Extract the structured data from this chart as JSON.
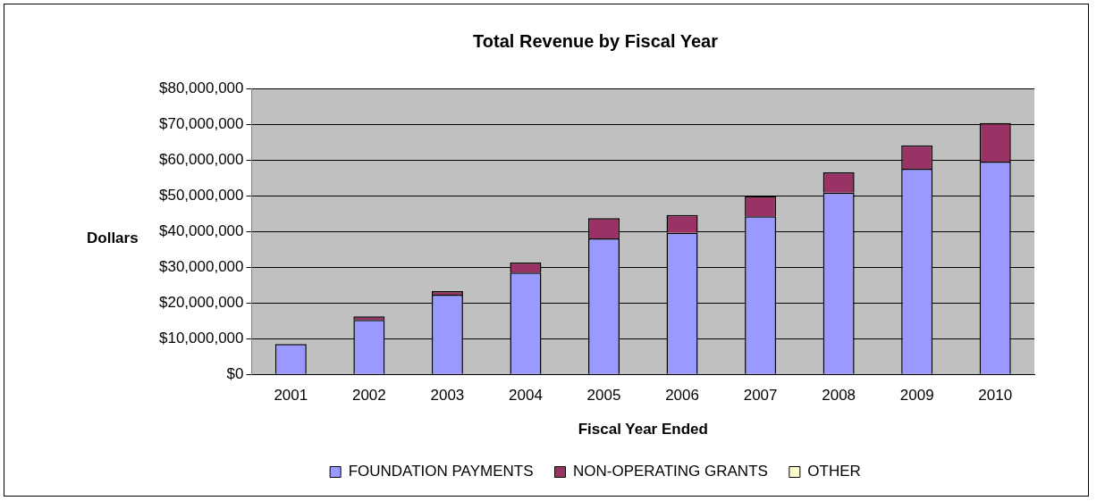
{
  "chart_data": {
    "type": "bar",
    "title": "Total Revenue by Fiscal Year",
    "xlabel": "Fiscal Year Ended",
    "ylabel": "Dollars",
    "categories": [
      "2001",
      "2002",
      "2003",
      "2004",
      "2005",
      "2006",
      "2007",
      "2008",
      "2009",
      "2010"
    ],
    "series": [
      {
        "name": "FOUNDATION PAYMENTS",
        "color": "#9999ff",
        "values": [
          8500000,
          15200000,
          22300000,
          28500000,
          38000000,
          39600000,
          44200000,
          50800000,
          57500000,
          59500000
        ]
      },
      {
        "name": "NON-OPERATING GRANTS",
        "color": "#993366",
        "values": [
          0,
          1000000,
          1000000,
          2800000,
          5700000,
          5000000,
          5700000,
          5700000,
          6600000,
          10800000
        ]
      },
      {
        "name": "OTHER",
        "color": "#ffffcc",
        "values": [
          0,
          0,
          0,
          0,
          0,
          0,
          0,
          0,
          0,
          0
        ]
      }
    ],
    "stacked": true,
    "ylim": [
      0,
      80000000
    ],
    "yticks": [
      {
        "value": 0,
        "label": "$0"
      },
      {
        "value": 10000000,
        "label": "$10,000,000"
      },
      {
        "value": 20000000,
        "label": "$20,000,000"
      },
      {
        "value": 30000000,
        "label": "$30,000,000"
      },
      {
        "value": 40000000,
        "label": "$40,000,000"
      },
      {
        "value": 50000000,
        "label": "$50,000,000"
      },
      {
        "value": 60000000,
        "label": "$60,000,000"
      },
      {
        "value": 70000000,
        "label": "$70,000,000"
      },
      {
        "value": 80000000,
        "label": "$80,000,000"
      }
    ],
    "grid": "y",
    "legend": "bottom"
  }
}
